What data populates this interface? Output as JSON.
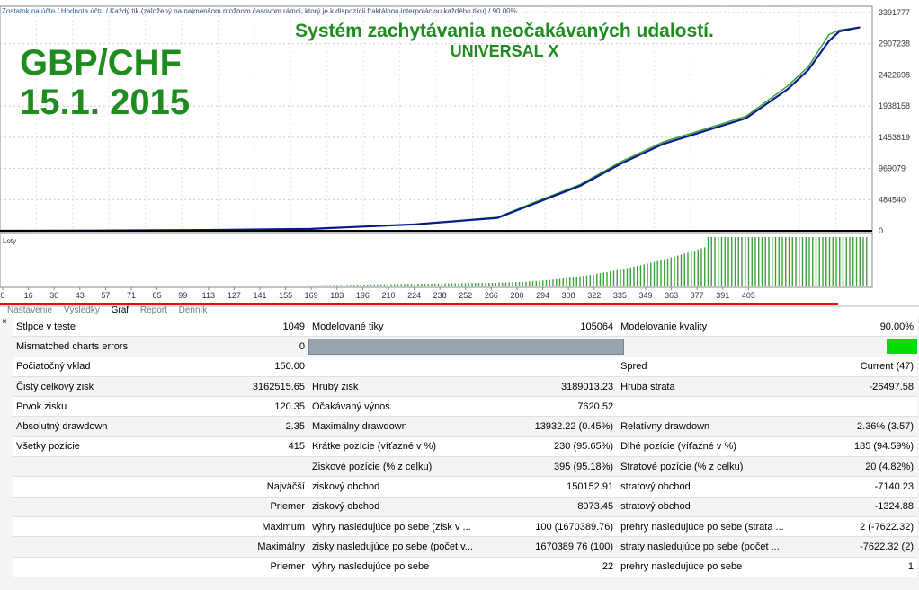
{
  "chart": {
    "header_text_parts": [
      "Zostatok na účte",
      " / ",
      "Hodnota účtu",
      " / Každý tik (založený na najmenšom možnom časovom rámci, ktorý je k dispozícii fraktálnou interpoláciou každého tiku) / 90.00%"
    ],
    "headline": "Systém zachytávania neočakávaných udalostí.",
    "subheadline": "UNIVERSAL X",
    "pair_label": "GBP/CHF",
    "date_label": "15.1. 2015",
    "y_ticks": [
      "3391777",
      "2907238",
      "2422698",
      "1938158",
      "1453619",
      "969079",
      "484540",
      "0"
    ],
    "lot_label": "Loty",
    "x_ticks": [
      "0",
      "16",
      "30",
      "43",
      "57",
      "71",
      "85",
      "99",
      "113",
      "127",
      "141",
      "155",
      "169",
      "183",
      "196",
      "210",
      "224",
      "238",
      "252",
      "266",
      "280",
      "294",
      "308",
      "322",
      "335",
      "349",
      "363",
      "377",
      "391",
      "405"
    ],
    "colors": {
      "balance": "#0a1a8c",
      "equity": "#39a339",
      "lots": "#3ca03c",
      "progress": "#e01010",
      "grid": "#c9c9c9"
    }
  },
  "tabs": [
    "Nastavenie",
    "Výsledky",
    "Graf",
    "Report",
    "Denník"
  ],
  "chart_data": {
    "type": "line",
    "x": [
      0,
      50,
      100,
      150,
      200,
      240,
      260,
      280,
      300,
      320,
      340,
      360,
      380,
      390,
      400,
      405,
      415
    ],
    "series": [
      {
        "name": "Zostatok na účte",
        "values": [
          150,
          4000,
          12000,
          30000,
          100000,
          200000,
          450000,
          700000,
          1050000,
          1350000,
          1550000,
          1750000,
          2200000,
          2500000,
          2950000,
          3100000,
          3162665
        ]
      },
      {
        "name": "Hodnota účtu",
        "values": [
          150,
          4000,
          12000,
          30000,
          100000,
          210000,
          470000,
          720000,
          1080000,
          1380000,
          1580000,
          1780000,
          2250000,
          2550000,
          3050000,
          3120000,
          3162665
        ]
      }
    ],
    "ylim": [
      0,
      3391777
    ]
  },
  "report": {
    "rows": [
      {
        "l1": "Stĺpce v teste",
        "v1": "1049",
        "l2": "Modelované tiky",
        "v2": "105064",
        "l3": "Modelovanie kvality",
        "v3": "90.00%"
      },
      {
        "l1": "Mismatched charts errors",
        "v1": "0",
        "quality_bar": true
      },
      {
        "l1": "Počiatočný vklad",
        "v1": "150.00",
        "l3": "Spred",
        "v3": "Current (47)"
      },
      {
        "l1": "Čistý celkový zisk",
        "v1": "3162515.65",
        "l2": "Hrubý zisk",
        "v2": "3189013.23",
        "l3": "Hrubá strata",
        "v3": "-26497.58"
      },
      {
        "l1": "Prvok zisku",
        "v1": "120.35",
        "l2": "Očakávaný výnos",
        "v2": "7620.52"
      },
      {
        "l1": "Absolutný drawdown",
        "v1": "2.35",
        "l2": "Maximálny drawdown",
        "v2": "13932.22 (0.45%)",
        "l3": "Relatívny drawdown",
        "v3": "2.36% (3.57)"
      },
      {
        "l1": "Všetky pozície",
        "v1": "415",
        "l2": "Krátke pozície (víťazné v %)",
        "v2": "230 (95.65%)",
        "l3": "Dlhé pozície (víťazné v %)",
        "v3": "185 (94.59%)"
      },
      {
        "l2": "Ziskové pozície (% z celku)",
        "v2": "395 (95.18%)",
        "l3": "Stratové pozície (% z celku)",
        "v3": "20 (4.82%)"
      },
      {
        "v1": "Najväčší",
        "l2": "ziskový obchod",
        "v2": "150152.91",
        "l3": "stratový obchod",
        "v3": "-7140.23"
      },
      {
        "v1": "Priemer",
        "l2": "ziskový obchod",
        "v2": "8073.45",
        "l3": "stratový obchod",
        "v3": "-1324.88"
      },
      {
        "v1": "Maximum",
        "l2": "výhry nasledujúce po sebe (zisk v ...",
        "v2": "100 (1670389.76)",
        "l3": "prehry nasledujúce po sebe (strata ...",
        "v3": "2 (-7622.32)"
      },
      {
        "v1": "Maximálny",
        "l2": "zisky nasledujúce po sebe (počet v...",
        "v2": "1670389.76 (100)",
        "l3": "straty nasledujúce po sebe (počet ...",
        "v3": "-7622.32 (2)"
      },
      {
        "v1": "Priemer",
        "l2": "výhry nasledujúce po sebe",
        "v2": "22",
        "l3": "prehry nasledujúce po sebe",
        "v3": "1"
      }
    ]
  }
}
